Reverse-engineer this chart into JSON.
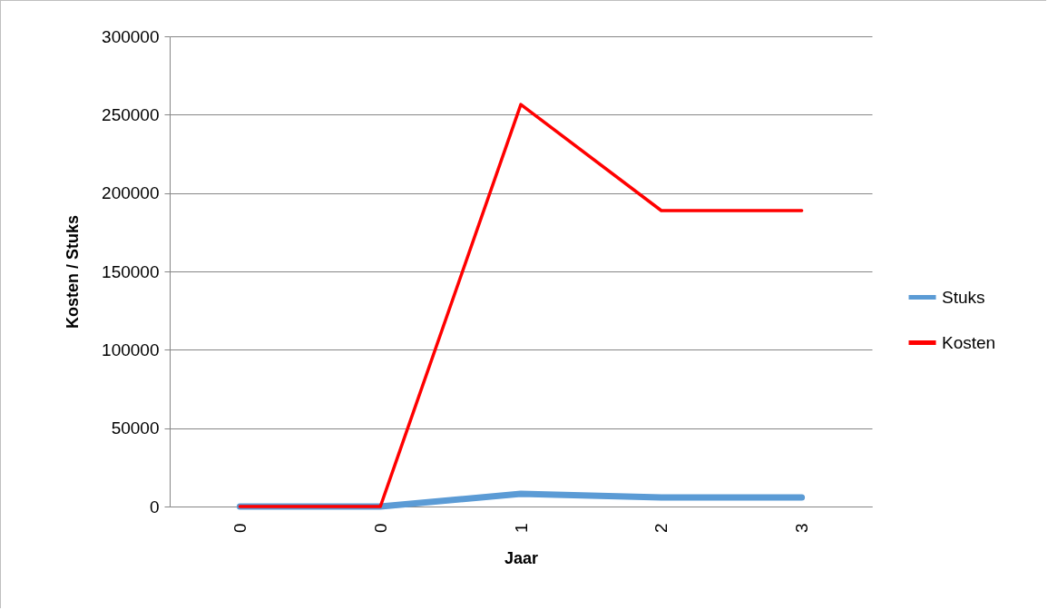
{
  "chart_data": {
    "type": "line",
    "xlabel": "Jaar",
    "ylabel": "Kosten / Stuks",
    "categories": [
      "0",
      "0",
      "1",
      "2",
      "3"
    ],
    "series": [
      {
        "name": "Stuks",
        "color": "#5b9bd5",
        "values": [
          0,
          0,
          8100,
          5800,
          5800
        ]
      },
      {
        "name": "Kosten",
        "color": "#ff0000",
        "values": [
          0,
          0,
          256500,
          188800,
          188800
        ]
      }
    ],
    "ylim": [
      0,
      300000
    ],
    "yticks": [
      0,
      50000,
      100000,
      150000,
      200000,
      250000,
      300000
    ],
    "grid": "y",
    "legend": "right"
  }
}
